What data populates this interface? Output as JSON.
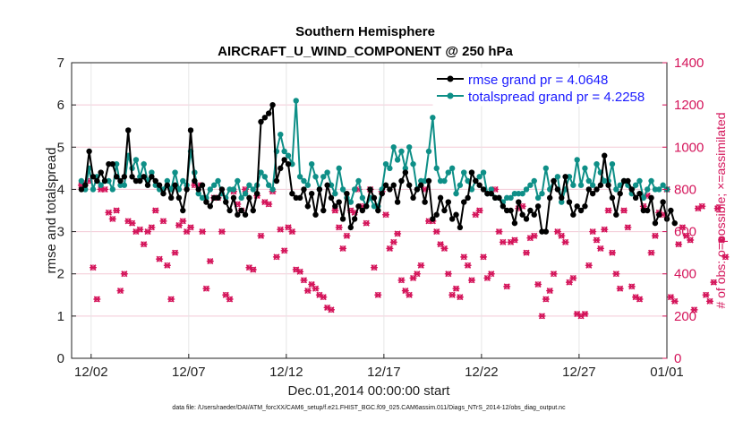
{
  "chart_data": {
    "type": "line",
    "title": "Southern Hemisphere",
    "subtitle": "AIRCRAFT_U_WIND_COMPONENT @ 250 hPa",
    "xlabel": "Dec.01,2014 00:00:00 start",
    "ylabel": "rmse and totalspread",
    "ylabel_right": "# of obs: o=possible; ×=assimilated",
    "footnote": "data file: /Users/raeder/DAI/ATM_forcXX/CAM6_setup/f.e21.FHIST_BGC.f09_025.CAM6assim.011/Diags_NTrS_2014-12/obs_diag_output.nc",
    "xlim": [
      0.5,
      31.0
    ],
    "ylim": [
      0,
      7
    ],
    "ylim_right": [
      0,
      1400
    ],
    "x_ticks": [
      1.5,
      6.5,
      11.5,
      16.5,
      21.5,
      26.5,
      31.0
    ],
    "x_tick_labels": [
      "12/02",
      "12/07",
      "12/12",
      "12/17",
      "12/22",
      "12/27",
      "01/01"
    ],
    "y_ticks": [
      0,
      1,
      2,
      3,
      4,
      5,
      6,
      7
    ],
    "y_ticks_right": [
      0,
      200,
      400,
      600,
      800,
      1000,
      1200,
      1400
    ],
    "legend_position": "top-right",
    "grid": true,
    "series": [
      {
        "name": "rmse grand pr = 4.0648",
        "color": "#000000",
        "marker": "circle",
        "values": [
          4.0,
          4.1,
          4.9,
          4.3,
          4.2,
          4.4,
          4.2,
          4.6,
          4.6,
          4.3,
          4.2,
          4.3,
          5.4,
          4.3,
          4.2,
          4.2,
          4.3,
          4.1,
          4.3,
          4.2,
          4.1,
          3.9,
          4.1,
          3.8,
          4.1,
          3.8,
          3.5,
          4.0,
          5.4,
          4.2,
          4.0,
          4.1,
          3.7,
          3.6,
          3.8,
          3.8,
          4.0,
          3.7,
          3.5,
          3.8,
          3.4,
          3.5,
          3.4,
          3.8,
          3.5,
          3.9,
          5.6,
          5.7,
          5.8,
          6.0,
          4.2,
          4.5,
          4.7,
          4.6,
          3.9,
          3.8,
          3.8,
          4.0,
          3.6,
          3.9,
          3.4,
          4.0,
          3.5,
          4.1,
          3.8,
          3.6,
          3.7,
          3.3,
          3.9,
          3.1,
          3.3,
          3.6,
          3.5,
          3.6,
          4.0,
          3.8,
          3.5,
          3.9,
          4.1,
          4.0,
          4.1,
          3.7,
          4.2,
          4.4,
          4.1,
          3.8,
          4.0,
          4.1,
          3.7,
          4.2,
          3.3,
          3.4,
          3.8,
          3.5,
          3.7,
          3.3,
          3.4,
          3.1,
          3.7,
          3.8,
          4.4,
          4.2,
          4.1,
          4.0,
          3.9,
          3.9,
          3.8,
          3.8,
          3.6,
          3.5,
          3.5,
          3.2,
          3.7,
          3.4,
          3.3,
          3.5,
          3.4,
          3.6,
          3.0,
          3.0,
          3.8,
          4.2,
          4.0,
          3.8,
          4.3,
          3.7,
          3.4,
          3.6,
          3.5,
          3.6,
          4.0,
          3.9,
          4.0,
          4.1,
          4.8,
          4.1,
          3.8,
          3.4,
          3.9,
          4.2,
          4.2,
          4.0,
          3.8,
          3.9,
          3.5,
          3.5,
          3.8,
          3.2,
          3.4,
          3.7,
          3.3,
          3.5,
          3.2
        ],
        "x_start": 1.0,
        "x_step": 0.2
      },
      {
        "name": "totalspread grand pr = 4.2258",
        "color": "#0e8f87",
        "marker": "circle",
        "values": [
          4.2,
          4.0,
          4.5,
          4.0,
          4.3,
          4.1,
          4.2,
          4.2,
          4.0,
          4.6,
          4.1,
          4.1,
          4.8,
          4.5,
          4.7,
          4.3,
          4.6,
          4.2,
          4.4,
          4.1,
          4.0,
          4.0,
          4.2,
          4.0,
          4.4,
          4.0,
          4.2,
          4.1,
          4.9,
          4.4,
          3.9,
          3.8,
          3.8,
          4.0,
          4.1,
          4.2,
          3.9,
          3.8,
          4.0,
          4.0,
          4.2,
          3.8,
          3.9,
          4.1,
          4.0,
          4.1,
          4.4,
          4.3,
          4.1,
          4.0,
          4.9,
          5.3,
          4.9,
          4.8,
          4.6,
          6.1,
          4.3,
          4.2,
          4.1,
          4.6,
          4.3,
          4.0,
          4.3,
          4.4,
          4.1,
          3.9,
          4.5,
          4.0,
          3.8,
          3.7,
          4.0,
          4.2,
          3.8,
          3.6,
          3.8,
          3.6,
          3.6,
          4.0,
          4.6,
          4.5,
          5.0,
          4.7,
          4.9,
          4.5,
          5.0,
          4.6,
          4.0,
          4.2,
          4.2,
          4.9,
          5.7,
          4.5,
          4.2,
          4.2,
          4.4,
          4.5,
          3.9,
          4.1,
          4.4,
          4.2,
          4.0,
          4.2,
          4.3,
          4.4,
          3.9,
          4.0,
          3.8,
          3.8,
          3.7,
          3.8,
          3.8,
          3.9,
          3.9,
          3.9,
          4.0,
          4.1,
          4.2,
          3.8,
          3.9,
          4.5,
          4.0,
          4.2,
          4.3,
          3.7,
          4.0,
          4.3,
          4.1,
          4.7,
          4.1,
          4.5,
          4.2,
          4.1,
          4.6,
          4.4,
          4.2,
          4.2,
          4.6,
          4.0,
          4.1,
          4.2,
          4.1,
          3.9,
          4.1,
          4.2,
          3.8,
          4.0,
          4.2,
          4.0,
          4.0,
          4.1,
          4.0
        ],
        "x_start": 1.0,
        "x_step": 0.2
      }
    ],
    "obs_count": {
      "axis": "right",
      "color": "#d4145a",
      "marker": "x and o",
      "x_start": 1.0,
      "x_step": 0.2,
      "values": [
        820,
        830,
        840,
        430,
        280,
        800,
        800,
        690,
        660,
        700,
        320,
        400,
        650,
        640,
        600,
        610,
        540,
        600,
        620,
        700,
        470,
        650,
        440,
        280,
        500,
        630,
        650,
        600,
        620,
        820,
        820,
        600,
        330,
        460,
        760,
        760,
        600,
        300,
        280,
        790,
        730,
        700,
        800,
        430,
        420,
        770,
        580,
        740,
        730,
        790,
        480,
        610,
        510,
        620,
        600,
        420,
        410,
        370,
        320,
        350,
        330,
        300,
        290,
        240,
        230,
        700,
        620,
        520,
        580,
        700,
        690,
        800,
        720,
        640,
        800,
        430,
        300,
        790,
        680,
        520,
        550,
        590,
        370,
        320,
        300,
        380,
        400,
        440,
        800,
        650,
        650,
        600,
        540,
        520,
        400,
        300,
        330,
        290,
        480,
        440,
        370,
        680,
        700,
        480,
        380,
        400,
        800,
        600,
        550,
        340,
        550,
        560,
        710,
        720,
        500,
        570,
        580,
        350,
        200,
        280,
        320,
        400,
        600,
        580,
        550,
        360,
        380,
        210,
        200,
        210,
        440,
        600,
        560,
        520,
        610,
        700,
        500,
        400,
        330,
        700,
        620,
        340,
        290,
        280,
        720,
        770,
        500,
        580,
        690,
        680,
        800,
        290,
        270,
        540,
        620,
        580,
        560,
        230,
        710,
        720,
        300,
        270,
        360,
        710,
        560,
        480
      ],
      "offset_pixels_note": ""
    }
  }
}
